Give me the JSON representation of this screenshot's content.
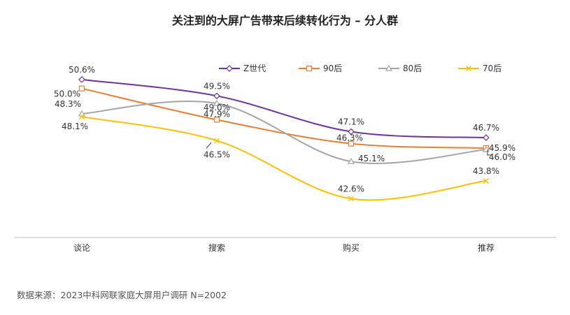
{
  "title": "关注到的大屏广告带来后续转化行为 – 分人群",
  "source": "数据来源：2023中科网联家庭大屏用户调研 N=2002",
  "chart_data": {
    "type": "line",
    "smooth": true,
    "categories": [
      "谈论",
      "搜索",
      "购买",
      "推荐"
    ],
    "unit": "%",
    "ylim": [
      40,
      52
    ],
    "grid": false,
    "legend": "top-right",
    "series": [
      {
        "name": "Z世代",
        "color": "#7030A0",
        "marker": "diamond",
        "values": [
          50.6,
          49.5,
          47.1,
          46.7
        ],
        "labels": [
          "50.6%",
          "49.5%",
          "47.1%",
          "46.7%"
        ]
      },
      {
        "name": "90后",
        "color": "#ED7D31",
        "marker": "square",
        "values": [
          50.0,
          47.9,
          46.3,
          46.0
        ],
        "labels": [
          "50.0%",
          "47.9%",
          "46.3%",
          "46.0%"
        ]
      },
      {
        "name": "80后",
        "color": "#A5A5A5",
        "marker": "triangle",
        "values": [
          48.3,
          49.0,
          45.1,
          45.9
        ],
        "labels": [
          "48.3%",
          "49.0%",
          "45.1%",
          "45.9%"
        ]
      },
      {
        "name": "70后",
        "color": "#FFC000",
        "marker": "x",
        "values": [
          48.1,
          46.5,
          42.6,
          43.8
        ],
        "labels": [
          "48.1%",
          "46.5%",
          "42.6%",
          "43.8%"
        ]
      }
    ]
  }
}
